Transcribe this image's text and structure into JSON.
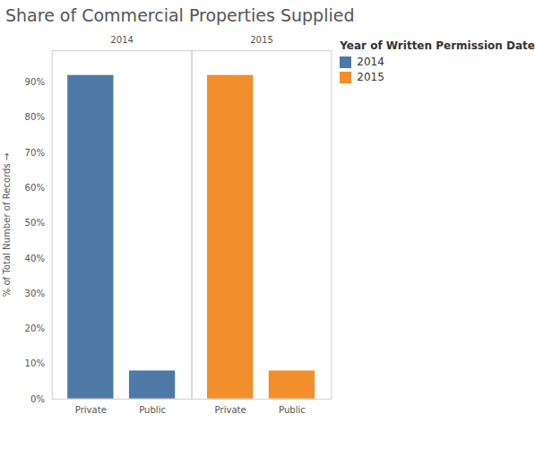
{
  "chart_data": {
    "type": "bar",
    "title": "Share of Commercial Properties Supplied",
    "categories": [
      "Private",
      "Public"
    ],
    "series": [
      {
        "name": "2014",
        "color": "#4e79a7",
        "values": [
          92,
          8
        ]
      },
      {
        "name": "2015",
        "color": "#f28e2b",
        "values": [
          92,
          8
        ]
      }
    ],
    "y_label": "% of Total Number of Records",
    "legend_title": "Year of Written Permission Date",
    "legend": "right",
    "ylim": [
      0,
      99
    ],
    "yticks": [
      {
        "value": 0,
        "label": "0%"
      },
      {
        "value": 10,
        "label": "10%"
      },
      {
        "value": 20,
        "label": "20%"
      },
      {
        "value": 30,
        "label": "30%"
      },
      {
        "value": 40,
        "label": "40%"
      },
      {
        "value": 50,
        "label": "50%"
      },
      {
        "value": 60,
        "label": "60%"
      },
      {
        "value": 70,
        "label": "70%"
      },
      {
        "value": 80,
        "label": "80%"
      },
      {
        "value": 90,
        "label": "90%"
      }
    ],
    "grid": false
  }
}
